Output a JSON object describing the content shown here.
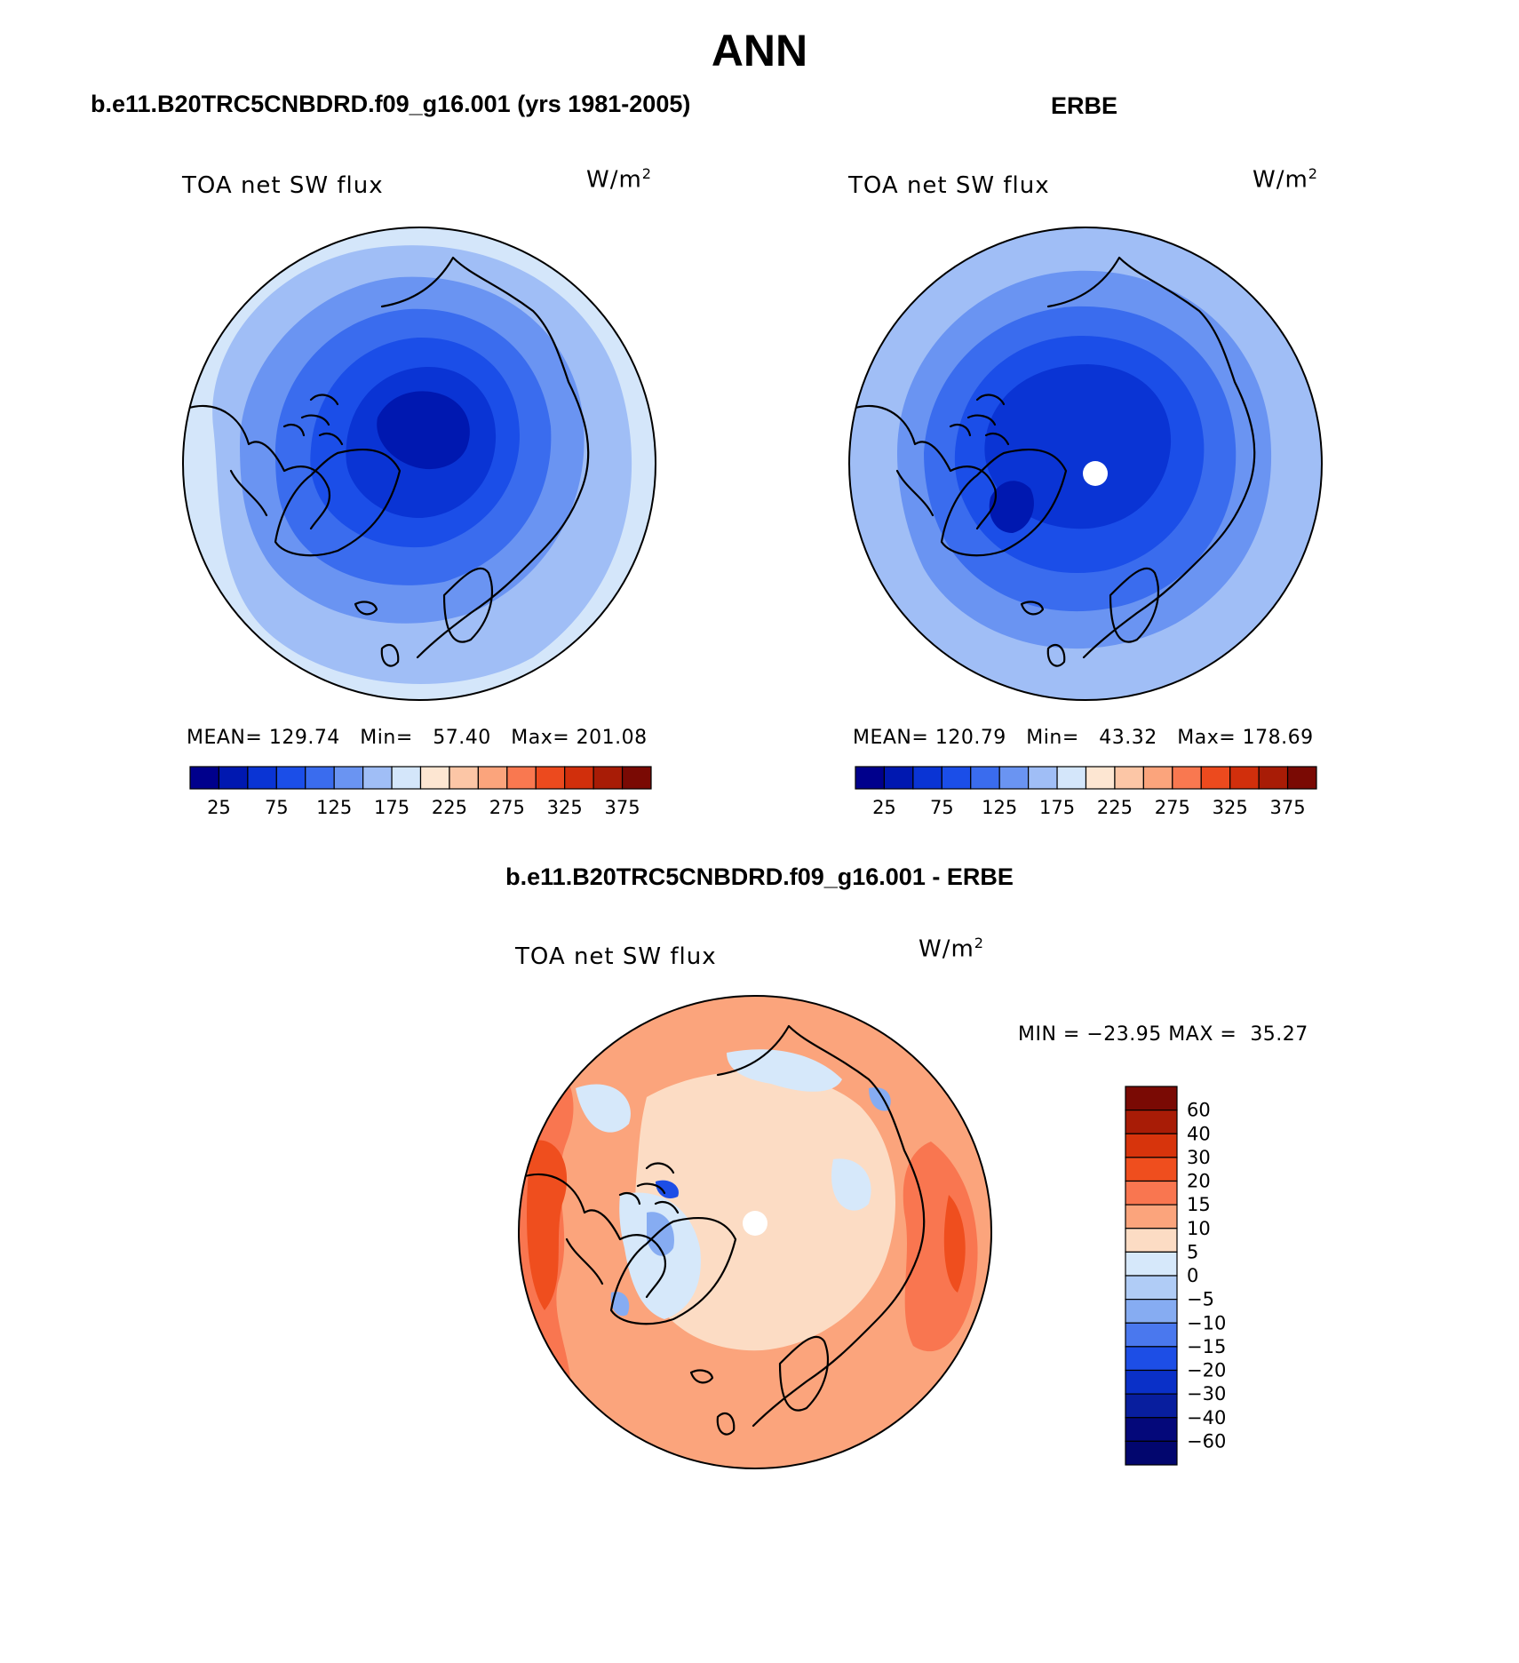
{
  "page_title": "ANN",
  "panels": [
    {
      "header": "b.e11.B20TRC5CNBDRD.f09_g16.001 (yrs 1981-2005)",
      "variable": "TOA net SW flux",
      "units_base": "W/m",
      "units_exp": "2",
      "stats": {
        "mean_label": "MEAN=",
        "mean": "129.74",
        "min_label": "Min=",
        "min": "57.40",
        "max_label": "Max=",
        "max": "201.08"
      }
    },
    {
      "header": "ERBE",
      "variable": "TOA net SW flux",
      "units_base": "W/m",
      "units_exp": "2",
      "stats": {
        "mean_label": "MEAN=",
        "mean": "120.79",
        "min_label": "Min=",
        "min": "43.32",
        "max_label": "Max=",
        "max": "178.69"
      }
    },
    {
      "header": "b.e11.B20TRC5CNBDRD.f09_g16.001 - ERBE",
      "variable": "TOA net SW flux",
      "units_base": "W/m",
      "units_exp": "2",
      "minmax": {
        "min_label": "MIN =",
        "min": "−23.95",
        "max_label": "MAX =",
        "max": "35.27"
      }
    }
  ],
  "abs_colorbar": {
    "colors": [
      "#00008c",
      "#0018b0",
      "#0a34d4",
      "#1b4ee8",
      "#3a6cee",
      "#6a94f2",
      "#a0bef6",
      "#d4e6fa",
      "#fde6d2",
      "#fcc6a6",
      "#fba47c",
      "#f97850",
      "#ec4a1e",
      "#d12f0c",
      "#a81c06",
      "#7a0a04"
    ],
    "labels": [
      "25",
      "75",
      "125",
      "175",
      "225",
      "275",
      "325",
      "375"
    ]
  },
  "diff_colorbar": {
    "colors": [
      "#7a0a04",
      "#a81c06",
      "#d7340c",
      "#ef4e1e",
      "#f97650",
      "#fba47c",
      "#fcdcc4",
      "#d6e8fa",
      "#b0ccf6",
      "#86acf2",
      "#4a78ee",
      "#1d4ee6",
      "#0a30c8",
      "#081e9e",
      "#04087a"
    ],
    "labels": [
      "60",
      "40",
      "30",
      "20",
      "15",
      "10",
      "5",
      "0",
      "−5",
      "−10",
      "−15",
      "−20",
      "−30",
      "−40",
      "−60"
    ]
  },
  "map_fields": {
    "model": {
      "fill_levels": [
        "#a0bef6",
        "#6a94f2",
        "#3a6cee",
        "#1b4ee8",
        "#0a34d4",
        "#0018b0"
      ],
      "outer_ring": "#d4e6fa"
    },
    "erbe": {
      "fill_levels": [
        "#a0bef6",
        "#6a94f2",
        "#3a6cee",
        "#1b4ee8",
        "#0a34d4",
        "#0018b0"
      ],
      "pole_hole": "#ffffff"
    },
    "diff": {
      "fill_levels": [
        "#ef4e1e",
        "#f97650",
        "#fba47c",
        "#fcdcc4",
        "#d6e8fa",
        "#86acf2",
        "#1d4ee6"
      ],
      "pole_hole": "#ffffff"
    }
  }
}
